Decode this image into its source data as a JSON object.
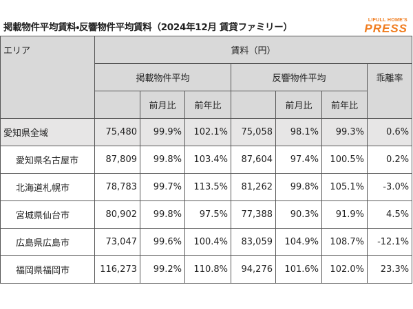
{
  "header": {
    "title": "掲載物件平均賃料・反響物件平均賃料（2024年12月 賃貸ファミリー）",
    "logo_top": "LIFULL HOME'S",
    "logo_bottom": "PRESS"
  },
  "table": {
    "area_label": "エリア",
    "rent_label": "賃料（円）",
    "listed_label": "掲載物件平均",
    "inquiry_label": "反響物件平均",
    "gap_label": "乖離率",
    "listed_mom": "前月比",
    "listed_yoy": "前年比",
    "inquiry_mom": "前月比",
    "inquiry_yoy": "前年比",
    "rows": [
      [
        "愛知県全域",
        "75,480",
        "99.9%",
        "102.1%",
        "75,058",
        "98.1%",
        "99.3%",
        "0.6%"
      ],
      [
        "愛知県名古屋市",
        "87,809",
        "99.8%",
        "103.4%",
        "87,604",
        "97.4%",
        "100.5%",
        "0.2%"
      ],
      [
        "北海道札幌市",
        "78,783",
        "99.7%",
        "113.5%",
        "81,262",
        "99.8%",
        "105.1%",
        "-3.0%"
      ],
      [
        "宮城県仙台市",
        "80,902",
        "99.8%",
        "97.5%",
        "77,388",
        "90.3%",
        "91.9%",
        "4.5%"
      ],
      [
        "広島県広島市",
        "73,047",
        "99.6%",
        "100.4%",
        "83,059",
        "104.9%",
        "108.7%",
        "-12.1%"
      ],
      [
        "福岡県福岡市",
        "116,273",
        "99.2%",
        "110.8%",
        "94,276",
        "101.6%",
        "102.0%",
        "23.3%"
      ]
    ]
  }
}
